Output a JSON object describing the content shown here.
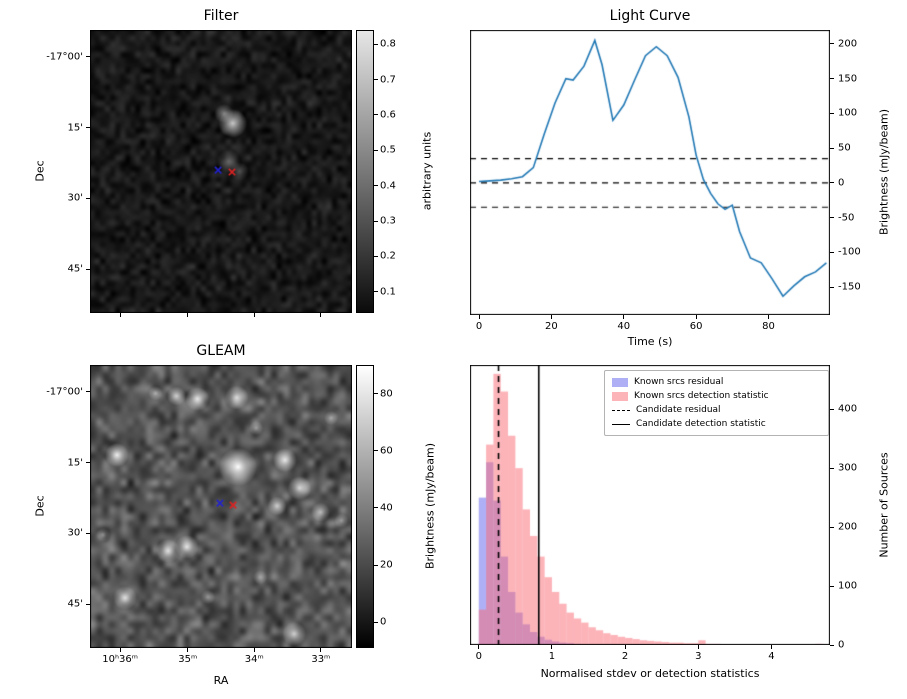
{
  "figure": {
    "background": "#ffffff"
  },
  "chart_data": [
    {
      "type": "heatmap",
      "title": "Filter",
      "xlabel": "",
      "ylabel": "Dec",
      "yticks": {
        "labels": [
          "-17°00'",
          "15'",
          "30'",
          "45'"
        ],
        "fracs": [
          0.095,
          0.345,
          0.595,
          0.845
        ]
      },
      "xticks": {
        "labels": [],
        "fracs": [
          0.115,
          0.373,
          0.627,
          0.881
        ]
      },
      "colorbar": {
        "label": "arbitrary units",
        "ticks": [
          0.8,
          0.7,
          0.6,
          0.5,
          0.4,
          0.3,
          0.2,
          0.1
        ],
        "vmin": 0.04,
        "vmax": 0.84,
        "cmap": "gray"
      },
      "markers": [
        {
          "symbol": "x",
          "color": "#2222cc",
          "x": 0.489,
          "y": 0.495
        },
        {
          "symbol": "x",
          "color": "#dd2222",
          "x": 0.542,
          "y": 0.502
        }
      ],
      "sources": [
        {
          "x": 0.545,
          "y": 0.33,
          "r": 6,
          "i": 0.75
        },
        {
          "x": 0.512,
          "y": 0.295,
          "r": 4,
          "i": 0.45
        },
        {
          "x": 0.53,
          "y": 0.465,
          "r": 5,
          "i": 0.3
        },
        {
          "x": 0.57,
          "y": 0.5,
          "r": 4,
          "i": 0.25
        }
      ]
    },
    {
      "type": "line",
      "title": "Light Curve",
      "xlabel": "Time (s)",
      "ylabel": "Brightness (mJy/beam)",
      "line_color": "#1f77b4",
      "x": [
        0,
        3,
        6,
        9,
        12,
        15,
        18,
        21,
        24,
        26,
        29,
        32,
        34,
        37,
        40,
        43,
        46,
        49,
        52,
        55,
        58,
        60,
        62,
        64,
        66,
        68,
        70,
        72,
        75,
        78,
        81,
        84,
        87,
        90,
        93,
        96
      ],
      "y": [
        2,
        3,
        4,
        6,
        9,
        22,
        70,
        115,
        150,
        148,
        168,
        205,
        170,
        90,
        112,
        148,
        183,
        196,
        183,
        152,
        95,
        40,
        5,
        -15,
        -30,
        -38,
        -32,
        -70,
        -108,
        -115,
        -138,
        -163,
        -148,
        -135,
        -128,
        -115
      ],
      "hlines": {
        "style": "dashed",
        "values": [
          35,
          0,
          -35
        ]
      },
      "xticks": [
        0,
        20,
        40,
        60,
        80
      ],
      "yticks": [
        200,
        150,
        100,
        50,
        0,
        -50,
        -100,
        -150
      ],
      "xlim": [
        -2.5,
        97
      ],
      "ylim": [
        -190,
        220
      ]
    },
    {
      "type": "heatmap",
      "title": "GLEAM",
      "xlabel": "RA",
      "ylabel": "Dec",
      "xticks": {
        "labels": [
          "10ʰ36ᵐ",
          "35ᵐ",
          "34ᵐ",
          "33ᵐ"
        ],
        "fracs": [
          0.115,
          0.373,
          0.627,
          0.881
        ]
      },
      "yticks": {
        "labels": [
          "-17°00'",
          "15'",
          "30'",
          "45'"
        ],
        "fracs": [
          0.095,
          0.345,
          0.595,
          0.845
        ]
      },
      "colorbar": {
        "label": "Brightness (mJy/beam)",
        "ticks": [
          80,
          60,
          40,
          20,
          0
        ],
        "vmin": -9,
        "vmax": 90,
        "cmap": "gray"
      },
      "markers": [
        {
          "symbol": "x",
          "color": "#2222cc",
          "x": 0.496,
          "y": 0.488
        },
        {
          "symbol": "x",
          "color": "#dd2222",
          "x": 0.546,
          "y": 0.495
        }
      ],
      "sources": [
        {
          "x": 0.565,
          "y": 0.36,
          "r": 8,
          "i": 1.0
        },
        {
          "x": 0.41,
          "y": 0.12,
          "r": 5,
          "i": 0.85
        },
        {
          "x": 0.56,
          "y": 0.115,
          "r": 5,
          "i": 0.8
        },
        {
          "x": 0.33,
          "y": 0.11,
          "r": 4,
          "i": 0.7
        },
        {
          "x": 0.25,
          "y": 0.1,
          "r": 3,
          "i": 0.55
        },
        {
          "x": 0.103,
          "y": 0.318,
          "r": 5,
          "i": 0.9
        },
        {
          "x": 0.744,
          "y": 0.336,
          "r": 5,
          "i": 0.85
        },
        {
          "x": 0.8,
          "y": 0.435,
          "r": 5,
          "i": 0.8
        },
        {
          "x": 0.714,
          "y": 0.498,
          "r": 4,
          "i": 0.7
        },
        {
          "x": 0.88,
          "y": 0.52,
          "r": 4,
          "i": 0.6
        },
        {
          "x": 0.37,
          "y": 0.643,
          "r": 5,
          "i": 0.85
        },
        {
          "x": 0.298,
          "y": 0.657,
          "r": 5,
          "i": 0.8
        },
        {
          "x": 0.134,
          "y": 0.823,
          "r": 5,
          "i": 0.8
        },
        {
          "x": 0.779,
          "y": 0.95,
          "r": 5,
          "i": 0.75
        },
        {
          "x": 0.634,
          "y": 0.223,
          "r": 3,
          "i": 0.5
        },
        {
          "x": 0.92,
          "y": 0.187,
          "r": 3,
          "i": 0.5
        },
        {
          "x": 0.05,
          "y": 0.6,
          "r": 3,
          "i": 0.45
        },
        {
          "x": 0.45,
          "y": 0.82,
          "r": 3,
          "i": 0.4
        },
        {
          "x": 0.65,
          "y": 0.75,
          "r": 3,
          "i": 0.4
        },
        {
          "x": 0.96,
          "y": 0.55,
          "r": 3,
          "i": 0.45
        }
      ]
    },
    {
      "type": "histogram",
      "title": "",
      "xlabel": "Normalised stdev or detection statistics",
      "ylabel": "Number of Sources",
      "bin_start": 0,
      "bin_width": 0.1,
      "series": [
        {
          "name": "Known srcs residual",
          "fill": "rgba(95,95,235,0.5)",
          "values": [
            250,
            310,
            245,
            150,
            90,
            55,
            35,
            22,
            14,
            9,
            6,
            4,
            3,
            2,
            1,
            1,
            1
          ]
        },
        {
          "name": "Known srcs detection statistic",
          "fill": "rgba(250,105,115,0.5)",
          "values": [
            60,
            340,
            460,
            430,
            355,
            300,
            230,
            185,
            150,
            115,
            90,
            70,
            55,
            45,
            38,
            30,
            25,
            20,
            17,
            14,
            12,
            10,
            8,
            7,
            6,
            5,
            4,
            4,
            3,
            3,
            8,
            2,
            2,
            1,
            1,
            1,
            1,
            0,
            1,
            0,
            1,
            0,
            0,
            0,
            0,
            1,
            2
          ]
        }
      ],
      "vlines": [
        {
          "label": "Candidate residual",
          "style": "dashed",
          "x": 0.27
        },
        {
          "label": "Candidate detection statistic",
          "style": "solid",
          "x": 0.82
        }
      ],
      "legend": [
        {
          "label": "Known srcs residual",
          "swatch": "blue-patch"
        },
        {
          "label": "Known srcs detection statistic",
          "swatch": "pink-patch"
        },
        {
          "label": "Candidate residual",
          "swatch": "dashed-line"
        },
        {
          "label": "Candidate detection statistic",
          "swatch": "solid-line"
        }
      ],
      "xticks": [
        0,
        1,
        2,
        3,
        4
      ],
      "yticks": [
        0,
        100,
        200,
        300,
        400
      ],
      "xlim": [
        -0.12,
        4.8
      ],
      "ylim": [
        0,
        475
      ]
    }
  ]
}
